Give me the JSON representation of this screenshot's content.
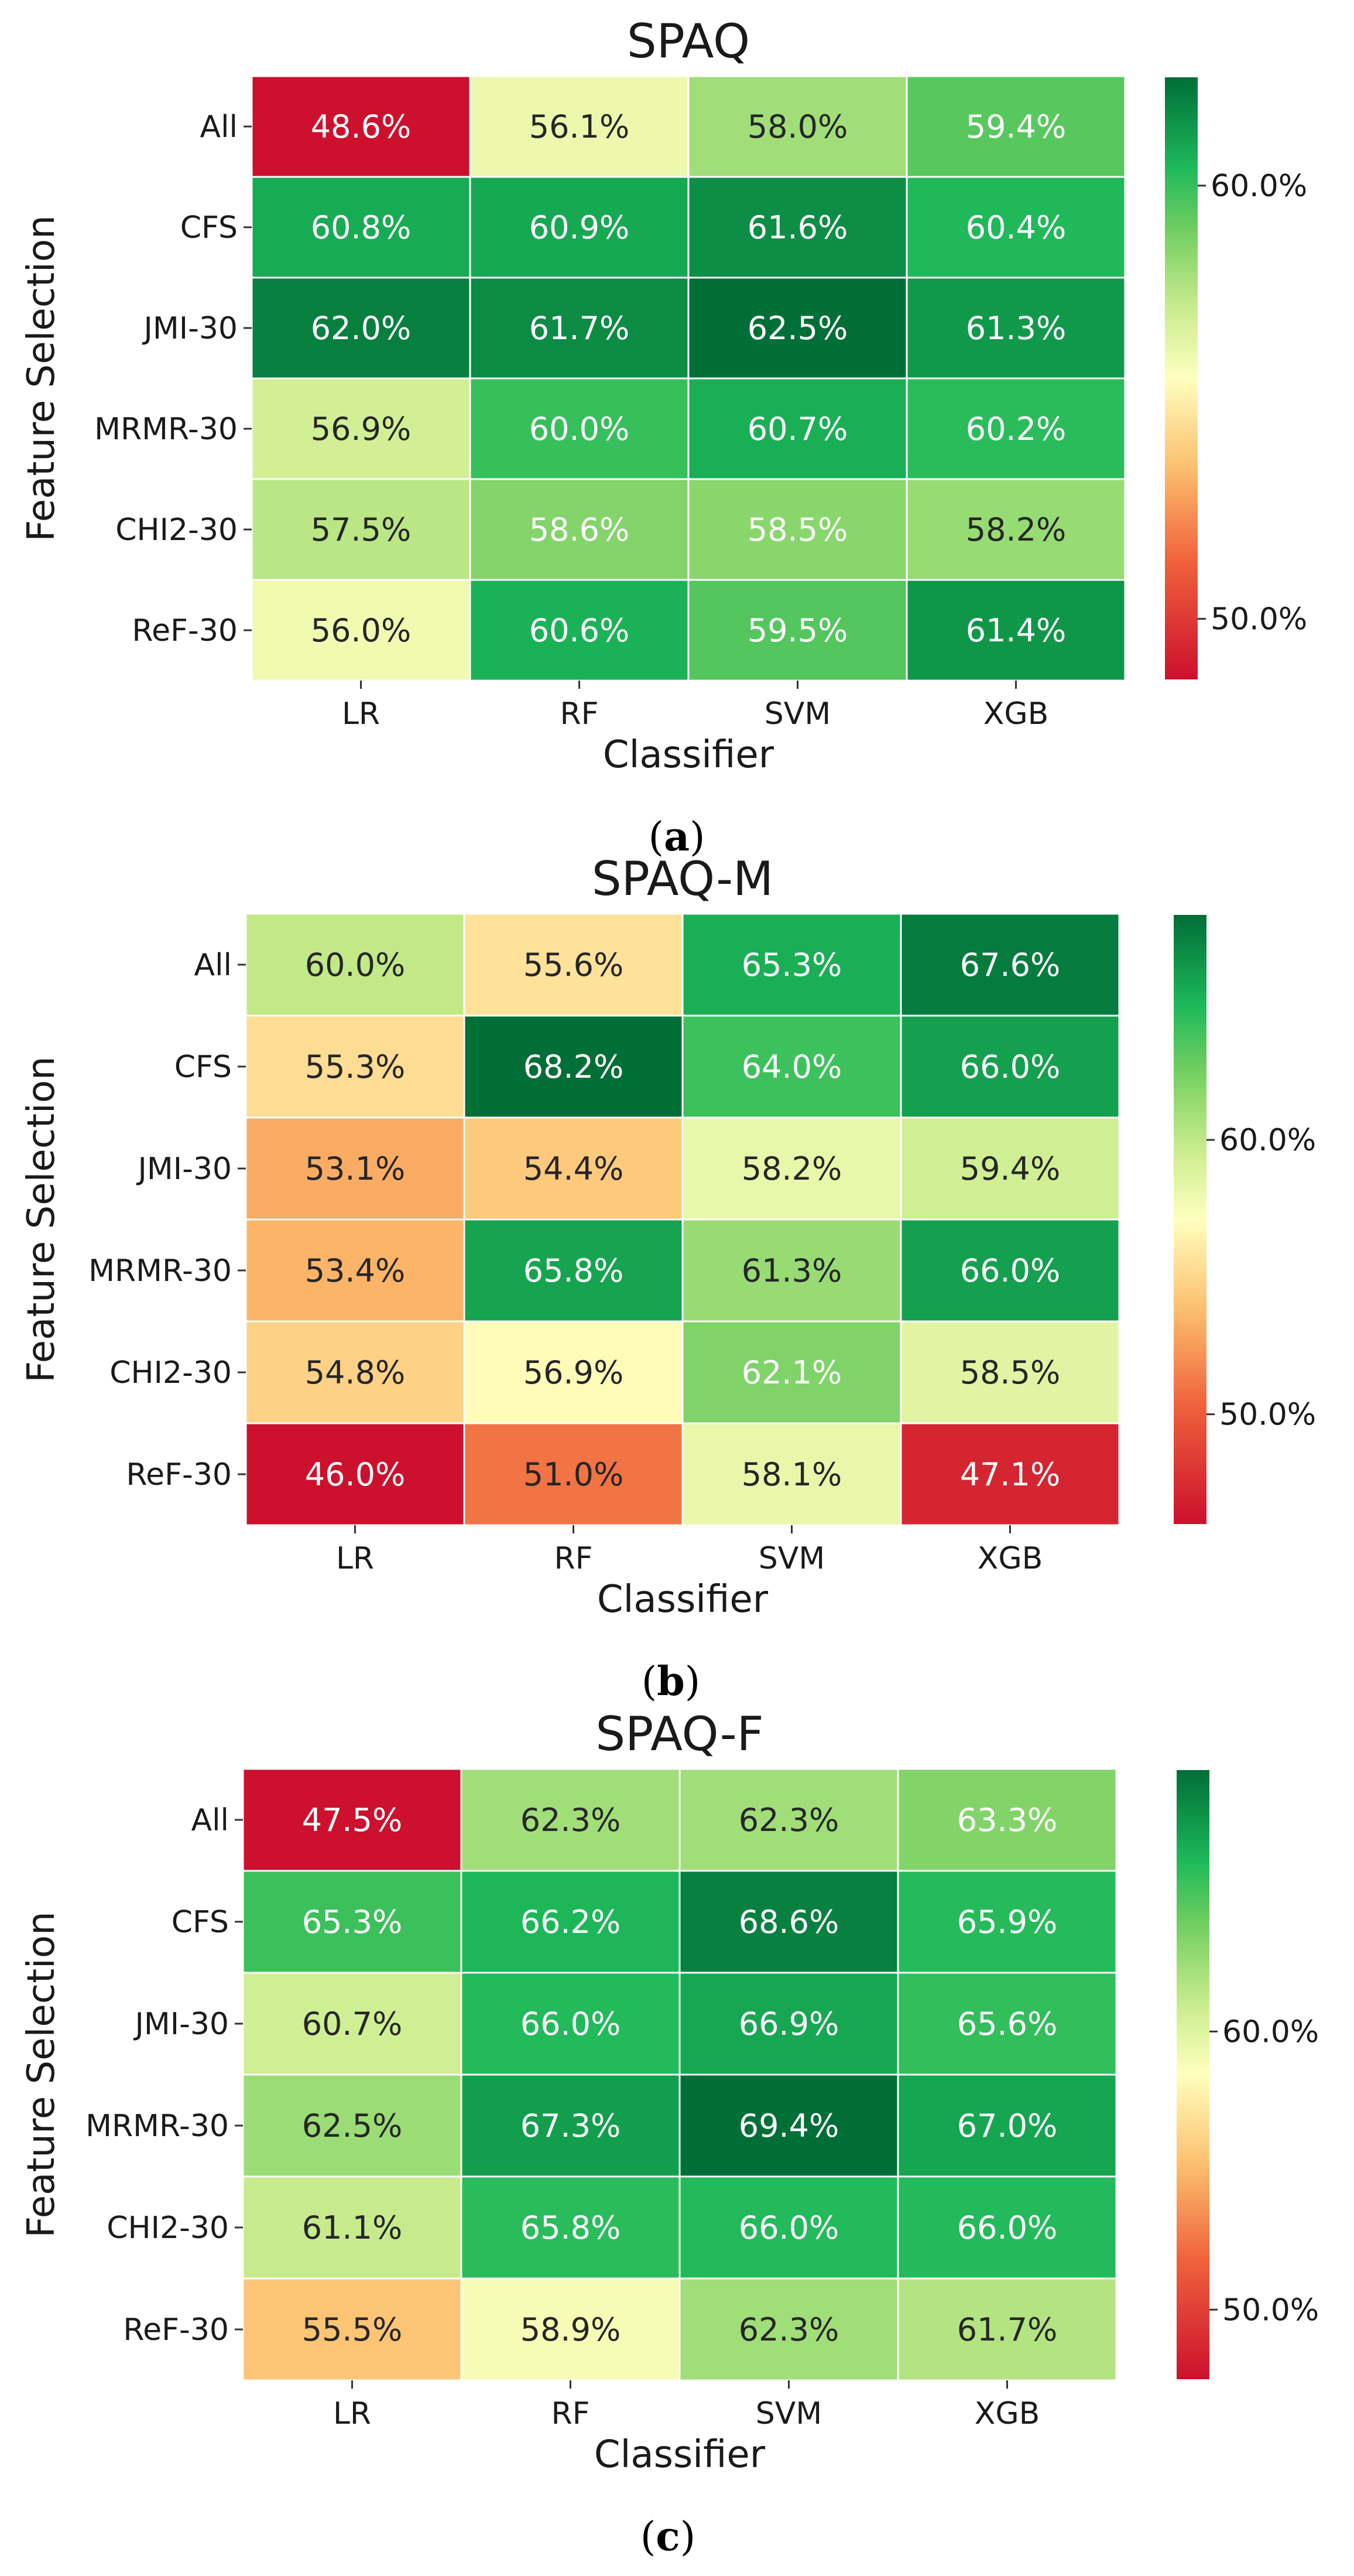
{
  "chart_data": [
    {
      "type": "heatmap",
      "title": "SPAQ",
      "panel_label": "a",
      "xlabel": "Classifier",
      "ylabel": "Feature Selection",
      "categories": [
        "LR",
        "RF",
        "SVM",
        "XGB"
      ],
      "rows": [
        "All",
        "CFS",
        "JMI-30",
        "MRMR-30",
        "CHI2-30",
        "ReF-30"
      ],
      "values": [
        [
          48.6,
          56.1,
          58.0,
          59.4
        ],
        [
          60.8,
          60.9,
          61.6,
          60.4
        ],
        [
          62.0,
          61.7,
          62.5,
          61.3
        ],
        [
          56.9,
          60.0,
          60.7,
          60.2
        ],
        [
          57.5,
          58.6,
          58.5,
          58.2
        ],
        [
          56.0,
          60.6,
          59.5,
          61.4
        ]
      ],
      "colorbar": {
        "vmin": 48.6,
        "vmax": 62.5,
        "ticks": [
          50.0,
          60.0
        ],
        "tick_labels": [
          "50.0%",
          "60.0%"
        ],
        "colormap": "RdYlGn"
      }
    },
    {
      "type": "heatmap",
      "title": "SPAQ-M",
      "panel_label": "b",
      "xlabel": "Classifier",
      "ylabel": "Feature Selection",
      "categories": [
        "LR",
        "RF",
        "SVM",
        "XGB"
      ],
      "rows": [
        "All",
        "CFS",
        "JMI-30",
        "MRMR-30",
        "CHI2-30",
        "ReF-30"
      ],
      "values": [
        [
          60.0,
          55.6,
          65.3,
          67.6
        ],
        [
          55.3,
          68.2,
          64.0,
          66.0
        ],
        [
          53.1,
          54.4,
          58.2,
          59.4
        ],
        [
          53.4,
          65.8,
          61.3,
          66.0
        ],
        [
          54.8,
          56.9,
          62.1,
          58.5
        ],
        [
          46.0,
          51.0,
          58.1,
          47.1
        ]
      ],
      "colorbar": {
        "vmin": 46.0,
        "vmax": 68.2,
        "ticks": [
          50.0,
          60.0
        ],
        "tick_labels": [
          "50.0%",
          "60.0%"
        ],
        "colormap": "RdYlGn"
      }
    },
    {
      "type": "heatmap",
      "title": "SPAQ-F",
      "panel_label": "c",
      "xlabel": "Classifier",
      "ylabel": "Feature Selection",
      "categories": [
        "LR",
        "RF",
        "SVM",
        "XGB"
      ],
      "rows": [
        "All",
        "CFS",
        "JMI-30",
        "MRMR-30",
        "CHI2-30",
        "ReF-30"
      ],
      "values": [
        [
          47.5,
          62.3,
          62.3,
          63.3
        ],
        [
          65.3,
          66.2,
          68.6,
          65.9
        ],
        [
          60.7,
          66.0,
          66.9,
          65.6
        ],
        [
          62.5,
          67.3,
          69.4,
          67.0
        ],
        [
          61.1,
          65.8,
          66.0,
          66.0
        ],
        [
          55.5,
          58.9,
          62.3,
          61.7
        ]
      ],
      "colorbar": {
        "vmin": 47.5,
        "vmax": 69.4,
        "ticks": [
          50.0,
          60.0
        ],
        "tick_labels": [
          "50.0%",
          "60.0%"
        ],
        "colormap": "RdYlGn"
      }
    }
  ]
}
